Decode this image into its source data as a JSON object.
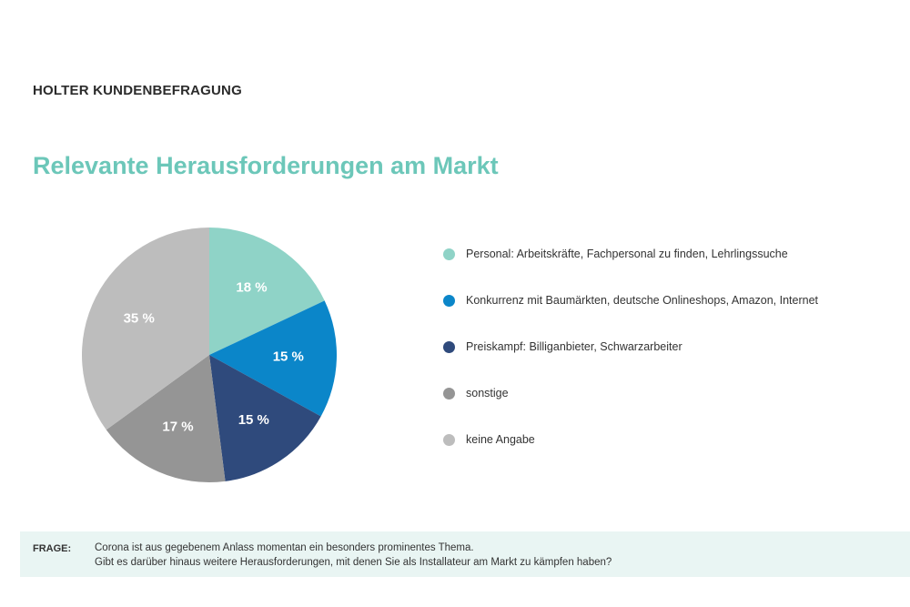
{
  "header": {
    "eyebrow": "HOLTER KUNDENBEFRAGUNG"
  },
  "chart_data": {
    "type": "pie",
    "title": "Relevante Herausforderungen am Markt",
    "legend_position": "right",
    "slices": [
      {
        "label": "Personal: Arbeitskräfte, Fachpersonal zu finden, Lehrlingssuche",
        "value": 18,
        "value_label": "18 %",
        "color": "#8fd3c7"
      },
      {
        "label": "Konkurrenz mit Baumärkten, deutsche Onlineshops, Amazon, Internet",
        "value": 15,
        "value_label": "15 %",
        "color": "#0b86c9"
      },
      {
        "label": "Preiskampf: Billiganbieter, Schwarzarbeiter",
        "value": 15,
        "value_label": "15 %",
        "color": "#2f4a7c"
      },
      {
        "label": "sonstige",
        "value": 17,
        "value_label": "17 %",
        "color": "#959595"
      },
      {
        "label": "keine Angabe",
        "value": 35,
        "value_label": "35 %",
        "color": "#bdbdbd"
      }
    ]
  },
  "question": {
    "label": "FRAGE:",
    "line1": "Corona ist aus gegebenem Anlass momentan ein besonders prominentes Thema.",
    "line2": "Gibt es darüber hinaus weitere Herausforderungen, mit denen Sie als Installateur am Markt zu kämpfen haben?"
  }
}
